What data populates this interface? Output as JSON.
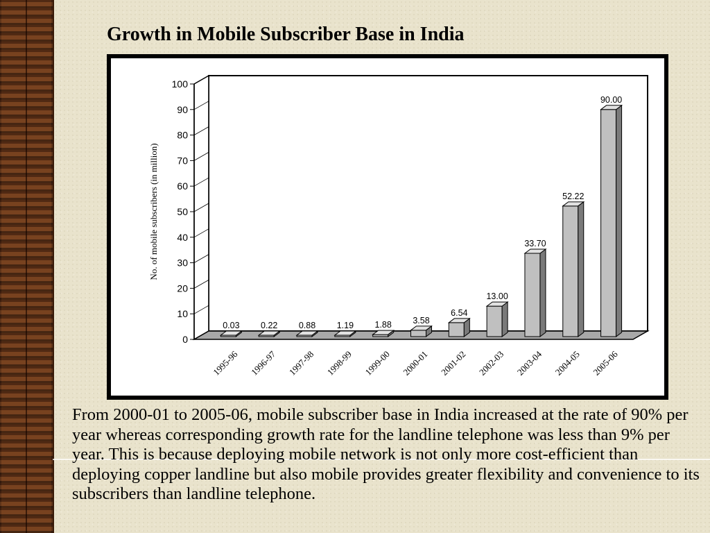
{
  "slide": {
    "title": "Growth in Mobile Subscriber Base in India",
    "caption": "From 2000-01 to 2005-06, mobile subscriber base in India increased at the rate of 90% per year whereas corresponding growth rate for the landline telephone was less than 9% per year. This is because deploying mobile network is not only more cost-efficient than deploying copper landline but also mobile provides greater flexibility and convenience to its subscribers than landline telephone."
  },
  "chart_data": {
    "type": "bar",
    "categories": [
      "1995-96",
      "1996-97",
      "1997-98",
      "1998-99",
      "1999-00",
      "2000-01",
      "2001-02",
      "2002-03",
      "2003-04",
      "2004-05",
      "2005-06"
    ],
    "values": [
      0.03,
      0.22,
      0.88,
      1.19,
      1.88,
      3.58,
      6.54,
      13.0,
      33.7,
      52.22,
      90.0
    ],
    "data_labels": [
      "0.03",
      "0.22",
      "0.88",
      "1.19",
      "1.88",
      "3.58",
      "6.54",
      "13.00",
      "33.70",
      "52.22",
      "90.00"
    ],
    "ylabel": "No. of mobile subscribers (in million)",
    "xlabel": "",
    "ylim": [
      0,
      100
    ],
    "yticks": [
      0,
      10,
      20,
      30,
      40,
      50,
      60,
      70,
      80,
      90,
      100
    ],
    "style": "3d",
    "grid": false,
    "colors": {
      "bar_front": "#c0c0c0",
      "bar_side": "#7a7a7a",
      "bar_top": "#e2e2e2"
    }
  }
}
